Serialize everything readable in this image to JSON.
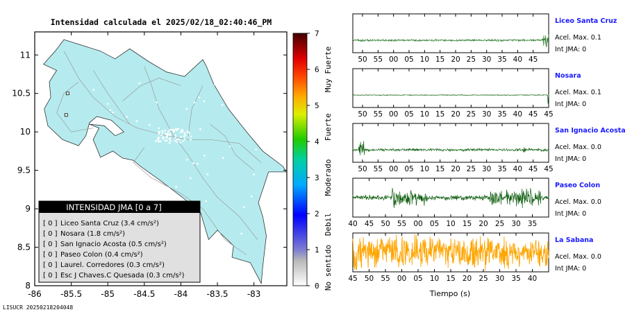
{
  "map": {
    "title": "Intensidad calculada el 2025/02/18_02:40:46_PM",
    "lat_ticks": [
      "11",
      "10.5",
      "10",
      "9.5",
      "9",
      "8.5",
      "8"
    ],
    "lon_ticks": [
      "-86",
      "-85.5",
      "-85",
      "-84.5",
      "-84",
      "-83.5",
      "-83"
    ],
    "lat_range": [
      8,
      11.3
    ],
    "lon_range": [
      -86,
      -82.55
    ],
    "land_color": "#b5ebee",
    "legend": {
      "title": "INTENSIDAD JMA [0 a 7]",
      "items": [
        {
          "code": "[ 0 ]",
          "label": "Liceo Santa Cruz (3.4 cm/s²)"
        },
        {
          "code": "[ 0 ]",
          "label": "Nosara (1.8 cm/s²)"
        },
        {
          "code": "[ 0 ]",
          "label": "San Ignacio Acosta (0.5 cm/s²)"
        },
        {
          "code": "[ 0 ]",
          "label": "Paseo Colon (0.4 cm/s²)"
        },
        {
          "code": "[ 0 ]",
          "label": "Laurel. Corredores (0.3 cm/s²)"
        },
        {
          "code": "[ 0 ]",
          "label": "Esc J Chaves.C Quesada (0.3 cm/s²)"
        }
      ]
    }
  },
  "colorbar": {
    "ticks": [
      "0",
      "1",
      "2",
      "3",
      "4",
      "5",
      "6",
      "7"
    ],
    "labels": [
      "No sentido",
      "Debil",
      "Moderado",
      "Fuerte",
      "Muy Fuerte"
    ]
  },
  "chart_data": {
    "type": "line",
    "xlabel": "Tiempo (s)",
    "panels": [
      {
        "name": "Liceo Santa Cruz",
        "acel": "Acel. Max. 0.1",
        "int": "Int JMA: 0",
        "color": "#2e7d2e",
        "ticks": [
          "50",
          "55",
          "00",
          "05",
          "10",
          "15",
          "20",
          "25",
          "30",
          "35",
          "40",
          "45"
        ],
        "last_tick": "",
        "amp": 0.05,
        "bursts": [
          [
            0.97,
            1.0,
            7
          ]
        ],
        "seed": 11
      },
      {
        "name": "Nosara",
        "acel": "Acel. Max. 0.1",
        "int": "Int JMA: 0",
        "color": "#1f6b1f",
        "ticks": [
          "50",
          "55",
          "00",
          "05",
          "10",
          "15",
          "20",
          "25",
          "30",
          "35",
          "40",
          "45"
        ],
        "last_tick": "45",
        "amp": 0.02,
        "bursts": [
          [
            0.995,
            1.0,
            20
          ]
        ],
        "seed": 23
      },
      {
        "name": "San Ignacio Acosta",
        "acel": "Acel. Max. 0.0",
        "int": "Int JMA: 0",
        "color": "#106010",
        "ticks": [
          "50",
          "55",
          "00",
          "05",
          "10",
          "15",
          "20",
          "25",
          "30",
          "35",
          "40",
          "45"
        ],
        "last_tick": "45",
        "amp": 0.06,
        "bursts": [
          [
            0.03,
            0.06,
            8
          ],
          [
            0.87,
            0.89,
            2
          ]
        ],
        "seed": 37
      },
      {
        "name": "Paseo Colon",
        "acel": "Acel. Max. 0.0",
        "int": "Int JMA: 0",
        "color": "#0a5a0a",
        "ticks": [
          "40",
          "45",
          "50",
          "55",
          "00",
          "05",
          "10",
          "15",
          "20",
          "25",
          "30",
          "35"
        ],
        "last_tick": "",
        "amp": 0.12,
        "bursts": [
          [
            0.2,
            0.24,
            4
          ],
          [
            0.22,
            0.38,
            3
          ],
          [
            0.7,
            0.76,
            3
          ],
          [
            0.78,
            0.96,
            3.5
          ]
        ],
        "seed": 51
      },
      {
        "name": "La Sabana",
        "acel": "Acel. Max. 0.0",
        "int": "Int JMA: 0",
        "color": "#ffa500",
        "ticks": [
          "45",
          "50",
          "55",
          "00",
          "05",
          "10",
          "15",
          "20",
          "25",
          "30",
          "35",
          "40"
        ],
        "last_tick": "",
        "amp": 0.55,
        "bursts": [
          [
            0.0,
            1.0,
            1.3
          ]
        ],
        "seed": 73
      }
    ]
  },
  "footer": "LISUCR 20250218204048"
}
